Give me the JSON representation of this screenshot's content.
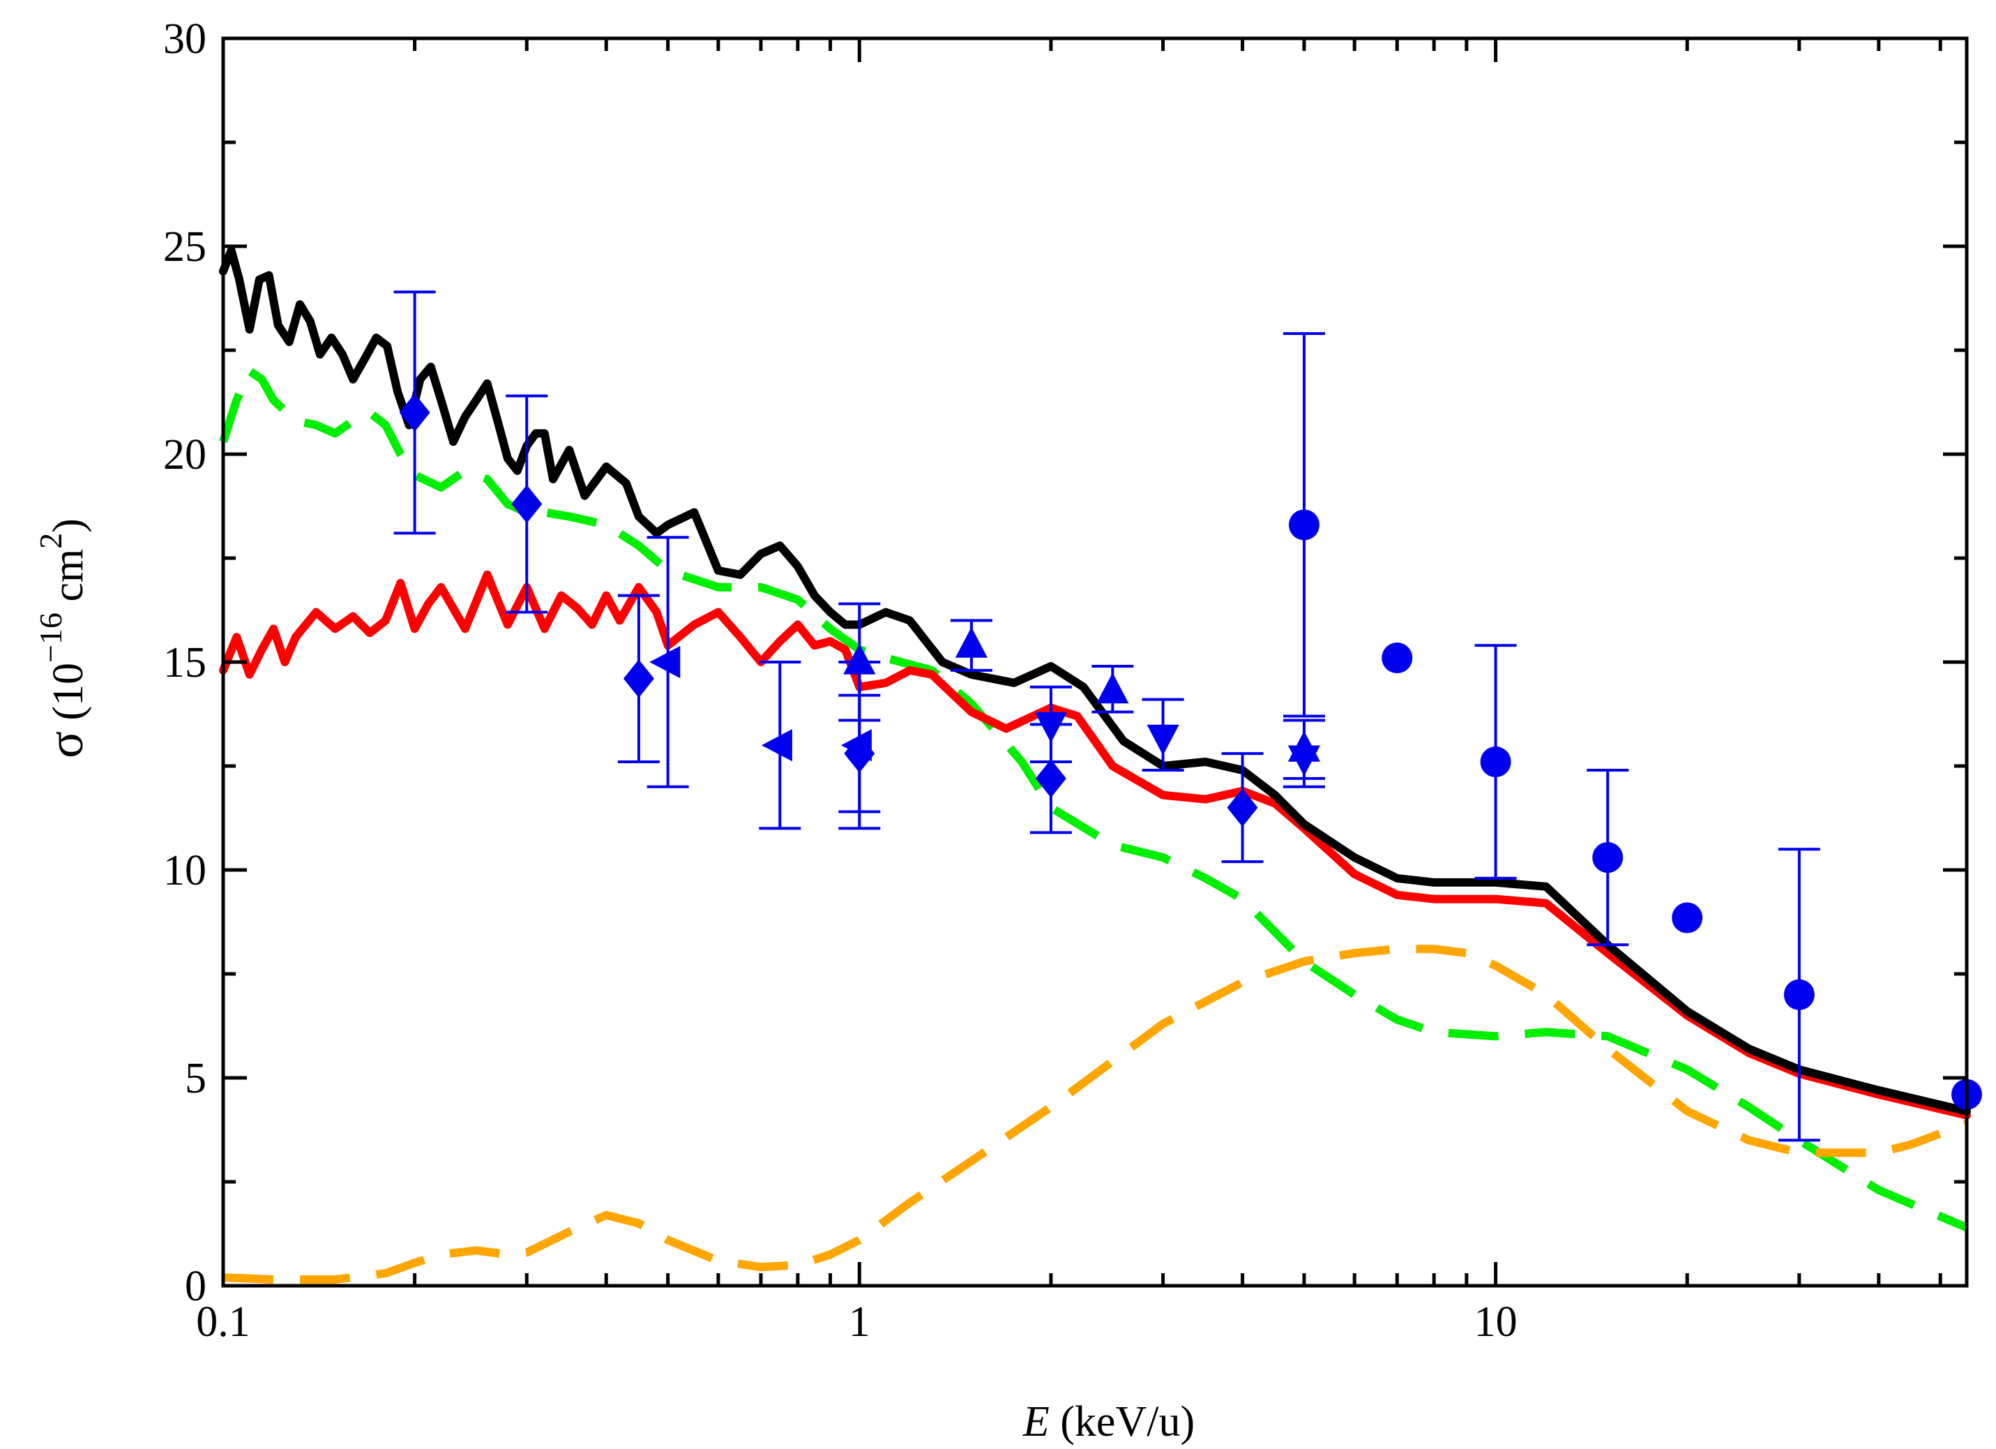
{
  "chart_data": {
    "type": "line",
    "title": "",
    "xlabel": {
      "italic": "E",
      "rest": " (keV/u)"
    },
    "ylabel": {
      "sym": "σ",
      "open": " (10",
      "exp": "−16",
      "mid": " cm",
      "exp2": "2",
      "close": ")"
    },
    "xscale": "log",
    "xlim": [
      0.1,
      55
    ],
    "ylim": [
      0,
      30
    ],
    "x_ticks": [
      {
        "v": 0.1,
        "label": "0.1"
      },
      {
        "v": 1,
        "label": "1"
      },
      {
        "v": 10,
        "label": "10"
      }
    ],
    "y_ticks": [
      0,
      5,
      10,
      15,
      20,
      25,
      30
    ],
    "y_minor_ticks": [
      2.5,
      7.5,
      12.5,
      17.5,
      22.5,
      27.5
    ],
    "series": [
      {
        "name": "green-dashed",
        "color": "#00ee00",
        "style": "dashed",
        "x": [
          0.1,
          0.105,
          0.11,
          0.115,
          0.12,
          0.13,
          0.14,
          0.15,
          0.16,
          0.17,
          0.18,
          0.19,
          0.2,
          0.22,
          0.24,
          0.26,
          0.28,
          0.3,
          0.32,
          0.35,
          0.4,
          0.45,
          0.5,
          0.6,
          0.7,
          0.8,
          0.9,
          1.0,
          1.1,
          1.3,
          1.5,
          1.8,
          2.0,
          2.5,
          3.0,
          3.5,
          4.0,
          5.0,
          6.0,
          7.0,
          8.0,
          10,
          12,
          15,
          20,
          25,
          30,
          40,
          55
        ],
        "y": [
          20.3,
          21.3,
          22.0,
          21.8,
          21.3,
          20.8,
          20.7,
          20.5,
          20.8,
          21.0,
          20.7,
          20.0,
          19.5,
          19.2,
          19.6,
          19.4,
          18.8,
          18.6,
          18.6,
          18.5,
          18.3,
          17.8,
          17.2,
          16.8,
          16.8,
          16.5,
          15.8,
          15.3,
          15.1,
          14.8,
          14.0,
          12.6,
          11.5,
          10.6,
          10.3,
          9.8,
          9.3,
          7.8,
          7.0,
          6.4,
          6.1,
          6.0,
          6.1,
          6.0,
          5.2,
          4.3,
          3.5,
          2.3,
          1.4
        ]
      },
      {
        "name": "orange-dashed",
        "color": "#ffa500",
        "style": "dashed",
        "x": [
          0.1,
          0.12,
          0.15,
          0.18,
          0.2,
          0.22,
          0.25,
          0.28,
          0.3,
          0.35,
          0.4,
          0.45,
          0.5,
          0.6,
          0.7,
          0.8,
          0.9,
          1.0,
          1.2,
          1.5,
          2.0,
          2.5,
          3.0,
          4.0,
          5.0,
          6.0,
          7.0,
          8.0,
          9.0,
          10,
          12,
          15,
          20,
          25,
          30,
          35,
          40,
          45,
          55
        ],
        "y": [
          0.2,
          0.15,
          0.15,
          0.3,
          0.55,
          0.75,
          0.85,
          0.75,
          0.8,
          1.3,
          1.7,
          1.5,
          1.1,
          0.6,
          0.45,
          0.5,
          0.75,
          1.1,
          2.0,
          3.0,
          4.3,
          5.4,
          6.3,
          7.3,
          7.8,
          8.0,
          8.1,
          8.1,
          8.0,
          7.7,
          7.0,
          5.7,
          4.2,
          3.5,
          3.2,
          3.2,
          3.2,
          3.4,
          3.9
        ]
      },
      {
        "name": "red-solid",
        "color": "#ff0000",
        "style": "solid",
        "x": [
          0.1,
          0.105,
          0.11,
          0.115,
          0.12,
          0.125,
          0.13,
          0.14,
          0.15,
          0.16,
          0.17,
          0.18,
          0.19,
          0.2,
          0.21,
          0.22,
          0.24,
          0.26,
          0.28,
          0.3,
          0.32,
          0.34,
          0.36,
          0.38,
          0.4,
          0.42,
          0.45,
          0.48,
          0.5,
          0.55,
          0.6,
          0.65,
          0.7,
          0.75,
          0.8,
          0.85,
          0.9,
          0.95,
          1.0,
          1.1,
          1.2,
          1.3,
          1.5,
          1.7,
          2.0,
          2.2,
          2.5,
          3.0,
          3.5,
          4.0,
          4.5,
          5.0,
          6.0,
          7.0,
          8.0,
          10,
          12,
          15,
          20,
          25,
          30,
          40,
          55
        ],
        "y": [
          14.8,
          15.6,
          14.7,
          15.3,
          15.8,
          15.0,
          15.6,
          16.2,
          15.8,
          16.1,
          15.7,
          16.0,
          16.9,
          15.8,
          16.4,
          16.8,
          15.8,
          17.1,
          15.9,
          16.8,
          15.8,
          16.6,
          16.3,
          15.9,
          16.6,
          16.0,
          16.8,
          16.2,
          15.4,
          15.9,
          16.2,
          15.6,
          15.0,
          15.5,
          15.9,
          15.4,
          15.5,
          15.3,
          14.4,
          14.5,
          14.8,
          14.7,
          13.8,
          13.4,
          13.9,
          13.7,
          12.5,
          11.8,
          11.7,
          11.9,
          11.6,
          11.0,
          9.9,
          9.4,
          9.3,
          9.3,
          9.2,
          8.0,
          6.5,
          5.6,
          5.1,
          4.6,
          4.1
        ]
      },
      {
        "name": "black-solid",
        "color": "#000000",
        "style": "solid",
        "x": [
          0.1,
          0.103,
          0.106,
          0.11,
          0.114,
          0.118,
          0.122,
          0.127,
          0.132,
          0.137,
          0.142,
          0.148,
          0.154,
          0.16,
          0.167,
          0.174,
          0.181,
          0.188,
          0.196,
          0.204,
          0.212,
          0.22,
          0.23,
          0.24,
          0.25,
          0.26,
          0.27,
          0.28,
          0.29,
          0.3,
          0.31,
          0.32,
          0.33,
          0.35,
          0.37,
          0.4,
          0.43,
          0.45,
          0.48,
          0.5,
          0.55,
          0.6,
          0.65,
          0.7,
          0.75,
          0.8,
          0.85,
          0.9,
          0.95,
          1.0,
          1.1,
          1.2,
          1.35,
          1.5,
          1.75,
          2.0,
          2.25,
          2.6,
          3.0,
          3.5,
          4.0,
          4.5,
          5.0,
          6.0,
          7.0,
          8.0,
          10,
          12,
          15,
          20,
          25,
          30,
          40,
          55
        ],
        "y": [
          24.4,
          24.9,
          24.2,
          23.0,
          24.2,
          24.3,
          23.1,
          22.7,
          23.6,
          23.2,
          22.4,
          22.8,
          22.4,
          21.8,
          22.3,
          22.8,
          22.6,
          21.5,
          20.7,
          21.8,
          22.1,
          21.3,
          20.3,
          20.9,
          21.3,
          21.7,
          20.8,
          19.9,
          19.6,
          20.2,
          20.5,
          20.5,
          19.4,
          20.1,
          19.0,
          19.7,
          19.3,
          18.5,
          18.1,
          18.3,
          18.6,
          17.2,
          17.1,
          17.6,
          17.8,
          17.3,
          16.6,
          16.2,
          15.9,
          15.9,
          16.2,
          16.0,
          15.0,
          14.7,
          14.5,
          14.9,
          14.4,
          13.1,
          12.5,
          12.6,
          12.4,
          11.8,
          11.1,
          10.3,
          9.8,
          9.7,
          9.7,
          9.6,
          8.2,
          6.6,
          5.7,
          5.2,
          4.7,
          4.2
        ]
      }
    ],
    "markers": [
      {
        "shape": "circle",
        "color": "#0000ee",
        "points": [
          {
            "x": 5.0,
            "y": 18.3,
            "ylo": 13.7,
            "yhi": 22.9
          },
          {
            "x": 7.0,
            "y": 15.1
          },
          {
            "x": 10,
            "y": 12.6,
            "ylo": 9.8,
            "yhi": 15.4
          },
          {
            "x": 15,
            "y": 10.3,
            "ylo": 8.2,
            "yhi": 12.4
          },
          {
            "x": 20,
            "y": 8.85
          },
          {
            "x": 30,
            "y": 7.0,
            "ylo": 3.5,
            "yhi": 10.5
          },
          {
            "x": 55,
            "y": 4.6
          }
        ]
      },
      {
        "shape": "diamond",
        "color": "#0000ee",
        "points": [
          {
            "x": 0.2,
            "y": 21.0,
            "ylo": 18.1,
            "yhi": 23.9
          },
          {
            "x": 0.3,
            "y": 18.8,
            "ylo": 16.2,
            "yhi": 21.4
          },
          {
            "x": 0.45,
            "y": 14.6,
            "ylo": 12.6,
            "yhi": 16.6
          },
          {
            "x": 1.0,
            "y": 12.8,
            "ylo": 11.4,
            "yhi": 14.2
          },
          {
            "x": 2.0,
            "y": 12.2,
            "ylo": 10.9,
            "yhi": 13.5
          },
          {
            "x": 4.0,
            "y": 11.5,
            "ylo": 10.2,
            "yhi": 12.8
          }
        ]
      },
      {
        "shape": "triangle-left",
        "color": "#0000ee",
        "points": [
          {
            "x": 0.5,
            "y": 15.0,
            "ylo": 12.0,
            "yhi": 18.0
          },
          {
            "x": 0.75,
            "y": 13.0,
            "ylo": 11.0,
            "yhi": 15.0
          },
          {
            "x": 1.0,
            "y": 13.0,
            "ylo": 11.0,
            "yhi": 15.0
          }
        ]
      },
      {
        "shape": "triangle-up",
        "color": "#0000ee",
        "points": [
          {
            "x": 1.0,
            "y": 15.0,
            "ylo": 13.6,
            "yhi": 16.4
          },
          {
            "x": 1.5,
            "y": 15.4,
            "ylo": 14.8,
            "yhi": 16.0
          },
          {
            "x": 2.5,
            "y": 14.3,
            "ylo": 13.8,
            "yhi": 14.9
          },
          {
            "x": 5.0,
            "y": 12.9,
            "ylo": 12.2,
            "yhi": 13.6
          }
        ]
      },
      {
        "shape": "triangle-down",
        "color": "#0000ee",
        "points": [
          {
            "x": 2.0,
            "y": 13.5,
            "ylo": 12.6,
            "yhi": 14.4
          },
          {
            "x": 3.0,
            "y": 13.2,
            "ylo": 12.4,
            "yhi": 14.1
          },
          {
            "x": 5.0,
            "y": 12.7,
            "ylo": 12.0,
            "yhi": 13.6
          }
        ]
      }
    ]
  }
}
